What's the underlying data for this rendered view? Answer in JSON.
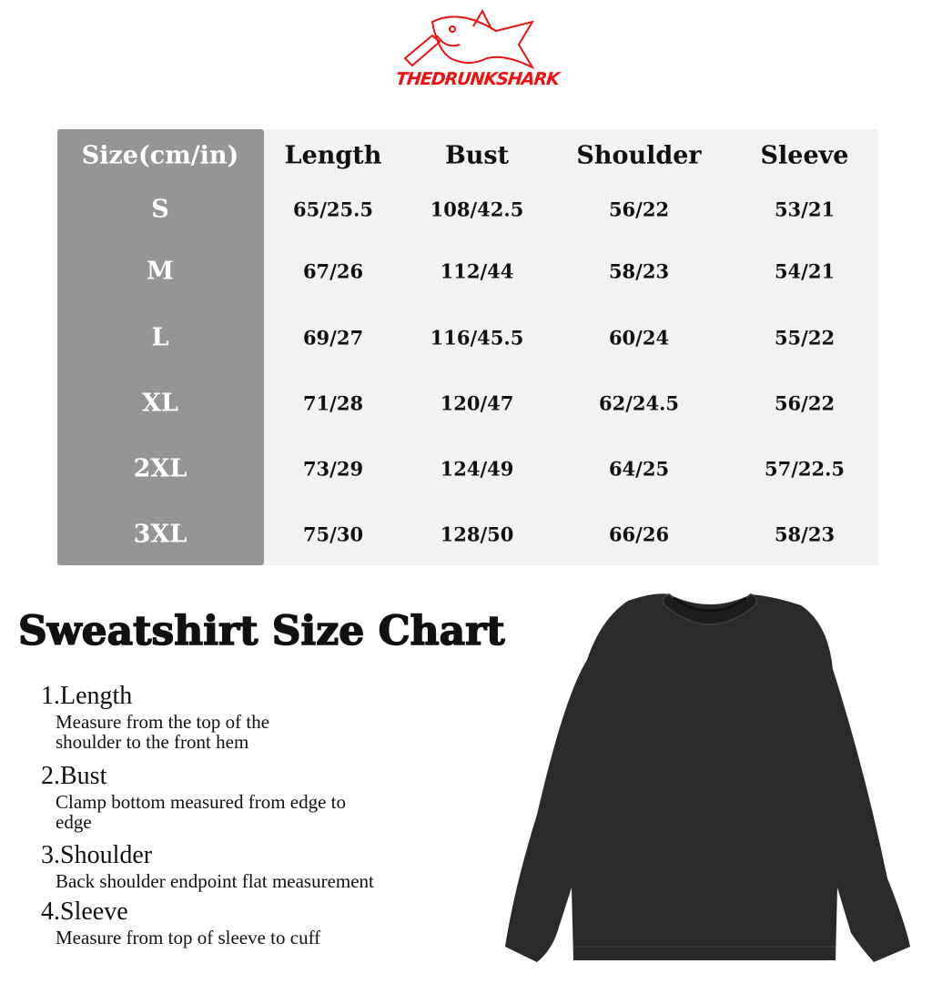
{
  "brand": {
    "logo_text": "THEDRUNKSHARK",
    "color": "#ee1111"
  },
  "table": {
    "headers": [
      "Size(cm/in)",
      "Length",
      "Bust",
      "Shoulder",
      "Sleeve"
    ],
    "rows": [
      [
        "S",
        "65/25.5",
        "108/42.5",
        "56/22",
        "53/21"
      ],
      [
        "M",
        "67/26",
        "112/44",
        "58/23",
        "54/21"
      ],
      [
        "L",
        "69/27",
        "116/45.5",
        "60/24",
        "55/22"
      ],
      [
        "XL",
        "71/28",
        "120/47",
        "62/24.5",
        "56/22"
      ],
      [
        "2XL",
        "73/29",
        "124/49",
        "64/25",
        "57/22.5"
      ],
      [
        "3XL",
        "75/30",
        "128/50",
        "66/26",
        "58/23"
      ]
    ],
    "size_column_color": "#959595",
    "background_color": "#f2f2f2"
  },
  "title": "Sweatshirt Size Chart",
  "instructions": [
    {
      "heading": "1.Length",
      "text": "Measure from the top of the shoulder to the front hem"
    },
    {
      "heading": "2.Bust",
      "text": "Clamp bottom measured from edge to edge"
    },
    {
      "heading": "3.Shoulder",
      "text": "Back shoulder endpoint flat measurement"
    },
    {
      "heading": "4.Sleeve",
      "text": "Measure from top of sleeve to cuff"
    }
  ],
  "product_image": {
    "icon": "sweatshirt-icon",
    "color": "#2a2a2a"
  }
}
